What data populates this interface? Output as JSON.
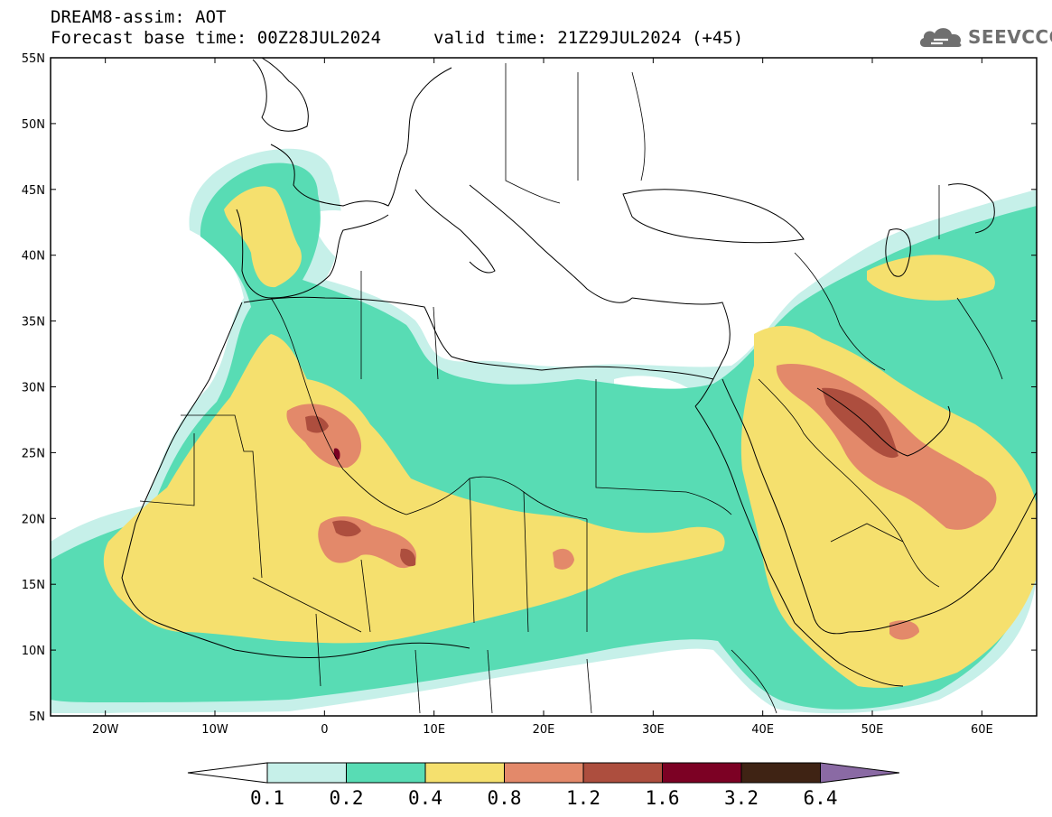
{
  "header": {
    "title": "DREAM8-assim: AOT",
    "forecast": "Forecast base time: 00Z28JUL2024",
    "valid": "valid time: 21Z29JUL2024 (+45)"
  },
  "logo": {
    "text": "SEEVCCC",
    "icon": "cloud-icon"
  },
  "axes": {
    "x_ticks": [
      "20W",
      "10W",
      "0",
      "10E",
      "20E",
      "30E",
      "40E",
      "50E",
      "60E"
    ],
    "y_ticks": [
      "55N",
      "50N",
      "45N",
      "40N",
      "35N",
      "30N",
      "25N",
      "20N",
      "15N",
      "10N",
      "5N"
    ],
    "lon_range": [
      -25,
      65
    ],
    "lat_range": [
      5,
      55
    ]
  },
  "colorbar": {
    "labels": [
      "0.1",
      "0.2",
      "0.4",
      "0.8",
      "1.2",
      "1.6",
      "3.2",
      "6.4"
    ],
    "colors": [
      "#ffffff",
      "#c6f0e9",
      "#58dcb4",
      "#f5e06e",
      "#e3896a",
      "#ad4e3e",
      "#7c0124",
      "#3f2314",
      "#8a6aa4"
    ]
  },
  "chart_data": {
    "type": "heatmap",
    "title": "DREAM8-assim: AOT",
    "variable": "AOT",
    "lon_range": [
      -25,
      65
    ],
    "lat_range": [
      5,
      55
    ],
    "levels": [
      0.1,
      0.2,
      0.4,
      0.8,
      1.2,
      1.6,
      3.2,
      6.4
    ],
    "level_colors": [
      "#c6f0e9",
      "#58dcb4",
      "#f5e06e",
      "#e3896a",
      "#ad4e3e",
      "#7c0124",
      "#3f2314",
      "#8a6aa4"
    ],
    "max_regions": [
      {
        "lon": 1.5,
        "lat": 25,
        "value": 3.2
      },
      {
        "lon": 50,
        "lat": 27,
        "value": 1.6
      },
      {
        "lon": 1.5,
        "lat": 19,
        "value": 1.2
      },
      {
        "lon": 7,
        "lat": 17,
        "value": 1.2
      }
    ]
  }
}
